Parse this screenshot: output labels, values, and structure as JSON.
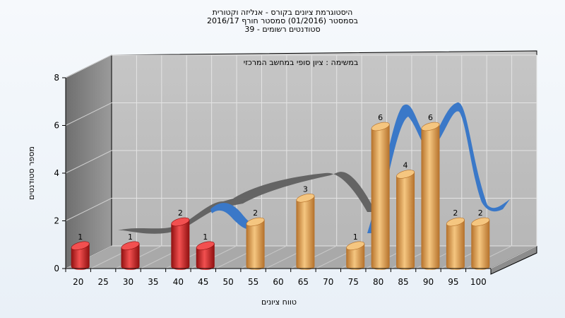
{
  "chart_data": {
    "type": "bar",
    "title_lines": [
      "היסטוגרמת ציונים בקורס - אנליזה וקטורית",
      "בסמסטר  (01/2016)  סמסטר חורף 2016/17",
      "סטודנטים רשומים - 39"
    ],
    "annotation": "במשימה : ציון סופי במחשב המרכזי",
    "xlabel": "טווח ציונים",
    "ylabel": "מספר סטודנטים",
    "x_ticks": [
      "20",
      "25",
      "30",
      "35",
      "40",
      "45",
      "50",
      "55",
      "60",
      "65",
      "70",
      "75",
      "80",
      "85",
      "90",
      "95",
      "100"
    ],
    "y_ticks": [
      "0",
      "2",
      "4",
      "6",
      "8"
    ],
    "ylim": [
      0,
      8
    ],
    "grid": true,
    "bars": [
      {
        "x": 20,
        "value": 1,
        "label": "1",
        "color": "#d42020"
      },
      {
        "x": 30,
        "value": 1,
        "label": "1",
        "color": "#d42020"
      },
      {
        "x": 40,
        "value": 2,
        "label": "2",
        "color": "#d42020"
      },
      {
        "x": 45,
        "value": 1,
        "label": "1",
        "color": "#d42020"
      },
      {
        "x": 55,
        "value": 2,
        "label": "2",
        "color": "#e4a64c"
      },
      {
        "x": 65,
        "value": 3,
        "label": "3",
        "color": "#e4a64c"
      },
      {
        "x": 75,
        "value": 1,
        "label": "1",
        "color": "#e4a64c"
      },
      {
        "x": 80,
        "value": 6,
        "label": "6",
        "color": "#e4a64c"
      },
      {
        "x": 85,
        "value": 4,
        "label": "4",
        "color": "#e4a64c"
      },
      {
        "x": 90,
        "value": 6,
        "label": "6",
        "color": "#e4a64c"
      },
      {
        "x": 95,
        "value": 2,
        "label": "2",
        "color": "#e4a64c"
      },
      {
        "x": 100,
        "value": 2,
        "label": "2",
        "color": "#e4a64c"
      }
    ],
    "curve": {
      "color_gray": "#5f5f5f",
      "color_blue": "#3a78c8"
    },
    "colors": {
      "wall": "#bdbdbd",
      "side_wall": "#8a8a8a",
      "floor": "#a9a9a9",
      "grid": "#e4e4e4"
    }
  }
}
